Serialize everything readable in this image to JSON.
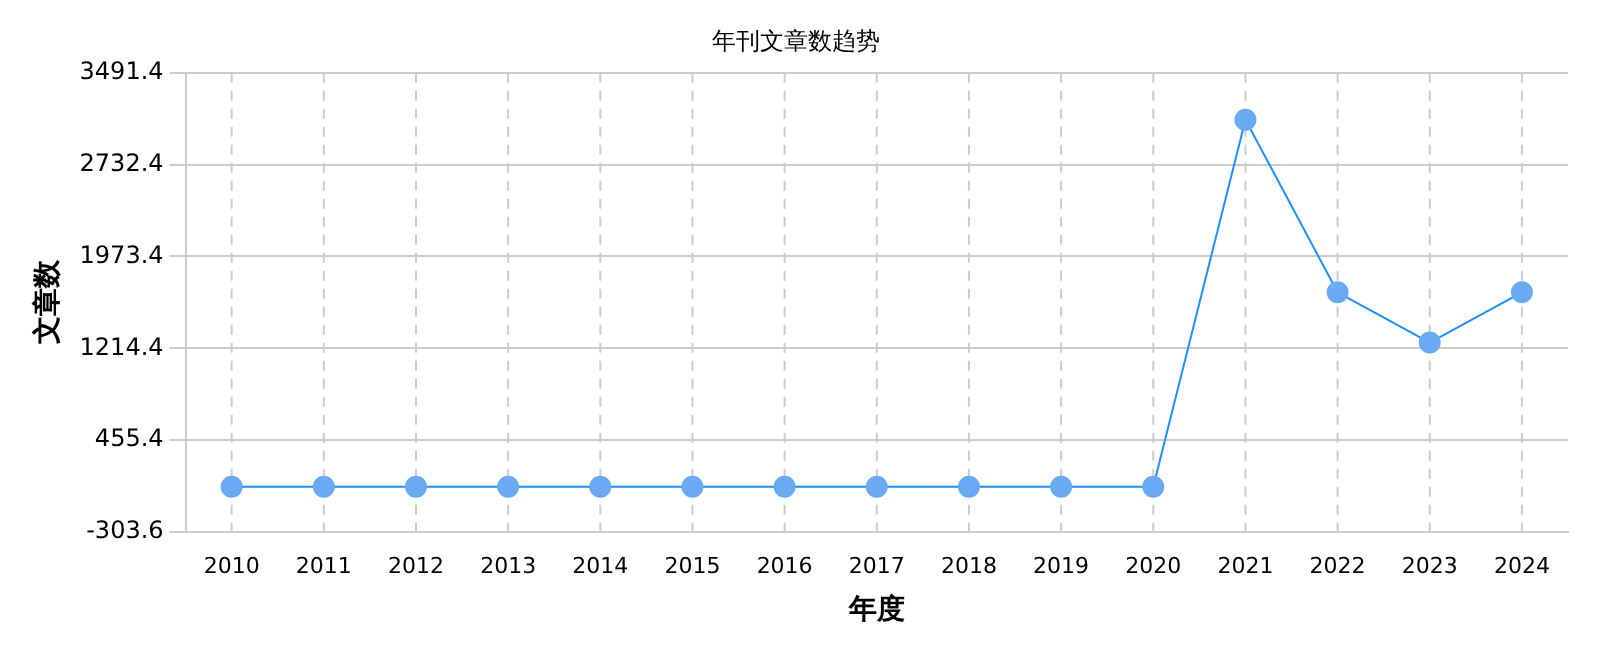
{
  "chart_data": {
    "type": "line",
    "title": "年刊文章数趋势",
    "xlabel": "年度",
    "ylabel": "文章数",
    "categories": [
      "2010",
      "2011",
      "2012",
      "2013",
      "2014",
      "2015",
      "2016",
      "2017",
      "2018",
      "2019",
      "2020",
      "2021",
      "2022",
      "2023",
      "2024"
    ],
    "series": [
      {
        "color": "#1e90ff",
        "values": [
          70,
          70,
          70,
          70,
          70,
          70,
          70,
          70,
          70,
          70,
          70,
          3104,
          1677,
          1262,
          1677
        ]
      }
    ],
    "ylim": [
      -303.6,
      3491.4
    ],
    "yticks": [
      -303.6,
      455.4,
      1214.4,
      1973.4,
      2732.4,
      3491.4
    ],
    "grid": true,
    "marker": "circle",
    "line_style": "solid",
    "legend": false
  }
}
